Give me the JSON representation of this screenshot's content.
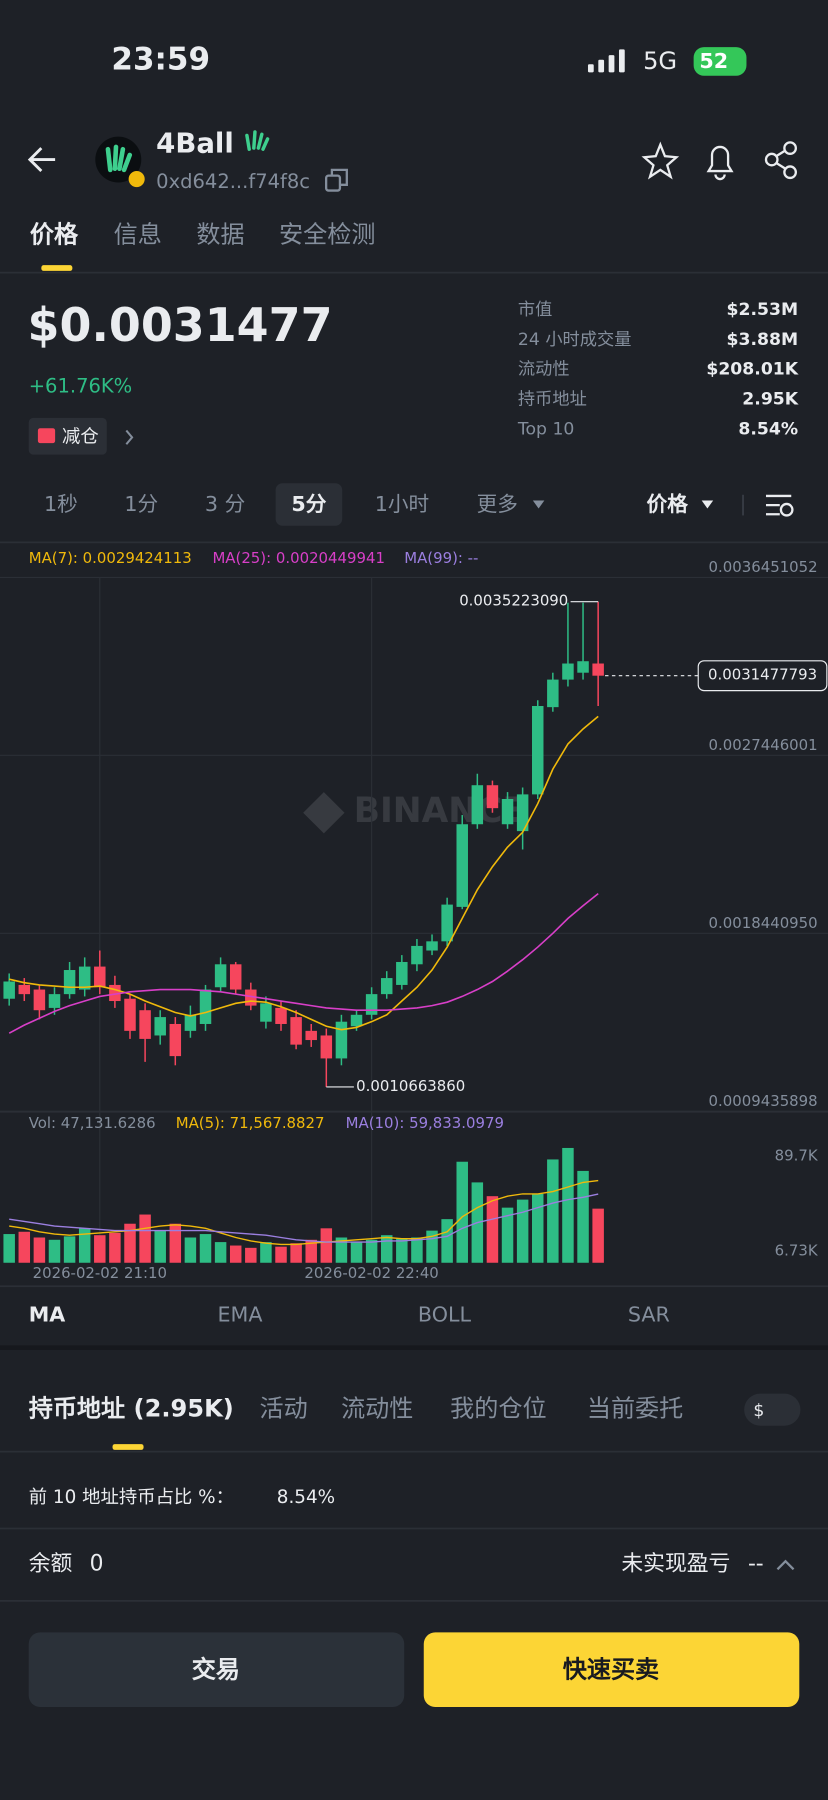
{
  "status_bar": {
    "time": "23:59",
    "network": "5G",
    "battery": "52"
  },
  "header": {
    "name": "4Ball",
    "address": "0xd642...f74f8c"
  },
  "tabs": {
    "items": [
      "价格",
      "信息",
      "数据",
      "安全检测"
    ]
  },
  "price": {
    "value": "$0.0031477",
    "change": "+61.76K%",
    "tag": "减仓"
  },
  "stats": {
    "rows": [
      [
        "市值",
        "$2.53M"
      ],
      [
        "24 小时成交量",
        "$3.88M"
      ],
      [
        "流动性",
        "$208.01K"
      ],
      [
        "持币地址",
        "2.95K"
      ],
      [
        "Top 10",
        "8.54%"
      ]
    ]
  },
  "intervals": {
    "items": [
      "1秒",
      "1分",
      "3 分",
      "5分",
      "1小时",
      "更多"
    ],
    "price_mode": "价格"
  },
  "chart_data": {
    "type": "candlestick",
    "categories": [
      null,
      null,
      null,
      null,
      null,
      null,
      "2026-02-02 21:10",
      null,
      null,
      null,
      null,
      null,
      null,
      null,
      null,
      null,
      null,
      null,
      null,
      null,
      null,
      null,
      null,
      null,
      "2026-02-02 22:40",
      null,
      null,
      null,
      null,
      null,
      null,
      null,
      null,
      null,
      null,
      null,
      null,
      null,
      null,
      null
    ],
    "open": [
      0.0015129,
      0.0015827,
      0.0015594,
      0.0014665,
      0.0015362,
      0.0015594,
      0.0016756,
      0.0015827,
      0.0015129,
      0.0014548,
      0.001327,
      0.0013851,
      0.0013503,
      0.0013851,
      0.001571,
      0.0016872,
      0.0015594,
      0.0013967,
      0.0014665,
      0.00142,
      0.0013503,
      0.001327,
      0.0012108,
      0.0013735,
      0.0014316,
      0.0015362,
      0.0015827,
      0.0016872,
      0.0017569,
      0.0018034,
      0.0019777,
      0.002396,
      0.0025935,
      0.002396,
      0.0023612,
      0.0025471,
      0.0029886,
      0.003128,
      0.0031629,
      0.0032094
    ],
    "high": [
      0.0016408,
      0.0016175,
      0.0015827,
      0.001571,
      0.0016989,
      0.0017221,
      0.0017569,
      0.0016291,
      0.0015362,
      0.0014897,
      0.0014548,
      0.00142,
      0.0014781,
      0.0015827,
      0.0017221,
      0.0016989,
      0.0015943,
      0.0015246,
      0.0015013,
      0.0014548,
      0.0013851,
      0.0013619,
      0.0014316,
      0.0014548,
      0.001571,
      0.0016524,
      0.0017337,
      0.0018151,
      0.0018383,
      0.0020242,
      0.0024425,
      0.0026516,
      0.0026168,
      0.0025587,
      0.0025819,
      0.0030235,
      0.0031629,
      0.0035173,
      0.0035173,
      0.003522309
    ],
    "low": [
      0.0014781,
      0.0015013,
      0.0014084,
      0.0014316,
      0.0015129,
      0.0015246,
      0.0015362,
      0.0014665,
      0.0013096,
      0.0011934,
      0.0012806,
      0.001176,
      0.0013154,
      0.0013503,
      0.0015478,
      0.0015362,
      0.0014548,
      0.0013619,
      0.0013503,
      0.0012573,
      0.0012689,
      0.001066386,
      0.001176,
      0.0013503,
      0.0014084,
      0.0015129,
      0.0015594,
      0.0016524,
      0.0017337,
      0.0017802,
      0.0019661,
      0.0023728,
      0.0024541,
      0.0023728,
      0.0022682,
      0.0025238,
      0.0029654,
      0.0030932,
      0.003128,
      0.0029944
    ],
    "close": [
      0.0016001,
      0.0015362,
      0.0014548,
      0.0015362,
      0.0016582,
      0.0016756,
      0.001571,
      0.0015013,
      0.0013503,
      0.0013096,
      0.00142,
      0.0012225,
      0.0014316,
      0.0015594,
      0.0016872,
      0.0015594,
      0.0014781,
      0.0014897,
      0.0013851,
      0.0012806,
      0.0013038,
      0.0012108,
      0.0013967,
      0.0014316,
      0.0015362,
      0.0016175,
      0.0016989,
      0.0017802,
      0.0018034,
      0.0019893,
      0.002396,
      0.0025935,
      0.0024774,
      0.0025238,
      0.0025471,
      0.0029944,
      0.003128,
      0.0032094,
      0.003221,
      0.0031477793
    ],
    "up_color": "#2ebd85",
    "down_color": "#f6465d",
    "ylim": [
      0.0009435898,
      0.0036451052
    ],
    "yticks": [
      0.0036451052,
      0.0027446001,
      {
        "value": 0.001844095,
        "label": "0.0018440950"
      },
      0.0009435898
    ],
    "grid": true,
    "series": [
      {
        "color": "#f0b90b",
        "values": [
          0.0016117,
          0.0015943,
          0.0015827,
          0.0015769,
          0.001571,
          0.001571,
          0.0015769,
          0.0015594,
          0.0015362,
          0.0015013,
          0.0014723,
          0.0014432,
          0.0014258,
          0.0014432,
          0.0014665,
          0.0014897,
          0.0015013,
          0.0014955,
          0.0014723,
          0.0014432,
          0.0014084,
          0.0013735,
          0.0013561,
          0.0013677,
          0.0013967,
          0.0014316,
          0.0015013,
          0.001571,
          0.0016582,
          0.0017744,
          0.0019196,
          0.0020649,
          0.0021811,
          0.0022798,
          0.0023553,
          0.0025006,
          0.0026749,
          0.0028027,
          0.0028782,
          0.0029424113
        ]
      },
      {
        "color": "#d83fc8",
        "values": [
          0.0013386,
          0.0013793,
          0.0014142,
          0.0014491,
          0.0014781,
          0.0015013,
          0.0015246,
          0.0015362,
          0.0015478,
          0.0015536,
          0.0015594,
          0.0015594,
          0.0015594,
          0.0015536,
          0.0015478,
          0.0015362,
          0.0015246,
          0.0015129,
          0.0015013,
          0.0014897,
          0.0014781,
          0.0014665,
          0.0014607,
          0.0014548,
          0.0014548,
          0.0014548,
          0.0014607,
          0.0014665,
          0.0014781,
          0.0014955,
          0.0015246,
          0.0015594,
          0.0016001,
          0.0016524,
          0.0017105,
          0.0017744,
          0.0018441,
          0.0019196,
          0.0019835,
          0.0020449941
        ]
      }
    ],
    "legend": [
      {
        "text": "MA(7): 0.0029424113",
        "color": "#f0b90b"
      },
      {
        "text": "MA(25): 0.0020449941",
        "color": "#d83fc8"
      },
      {
        "text": "MA(99): --",
        "color": "#9b7fe0"
      }
    ],
    "high_label": {
      "value": 0.003522309,
      "label": "0.0035223090"
    },
    "low_label": {
      "value": 0.001066386,
      "label": "0.0010663860"
    },
    "last_price": 0.0031477793,
    "watermark": "BINANCE",
    "volume": {
      "values": [
        25000,
        27000,
        22000,
        20000,
        23000,
        30000,
        24000,
        26000,
        34000,
        42000,
        28000,
        34000,
        22000,
        25000,
        18000,
        15000,
        13000,
        18000,
        14000,
        17000,
        20000,
        30000,
        22000,
        18000,
        20000,
        24000,
        21000,
        22000,
        28000,
        38000,
        88000,
        70000,
        58000,
        48000,
        55000,
        60000,
        90000,
        100000,
        80000,
        47131.6286
      ],
      "ylim": [
        0,
        110000
      ],
      "yticks": [
        {
          "value": 89700,
          "label": "89.7K"
        },
        {
          "value": 6730,
          "label": "6.73K"
        }
      ],
      "series": [
        {
          "color": "#f0b90b",
          "values": [
            32000,
            30000,
            27000,
            25000,
            24000,
            25000,
            26000,
            27000,
            28000,
            30000,
            32000,
            33000,
            32000,
            30000,
            26000,
            22000,
            19000,
            17000,
            16000,
            16000,
            17000,
            18000,
            19000,
            20000,
            21000,
            22000,
            21000,
            21000,
            23000,
            27000,
            40000,
            48000,
            54000,
            58000,
            60000,
            60000,
            62000,
            66000,
            70000,
            71567.8827
          ]
        },
        {
          "color": "#9b7fe0",
          "values": [
            38000,
            36000,
            34000,
            32000,
            31000,
            30000,
            29000,
            28000,
            28000,
            28000,
            28000,
            28000,
            28000,
            28000,
            27000,
            26000,
            25000,
            24000,
            22000,
            20000,
            19000,
            18000,
            18000,
            18000,
            18000,
            19000,
            19000,
            20000,
            21000,
            23000,
            30000,
            35000,
            38000,
            41000,
            44000,
            48000,
            52000,
            55000,
            57000,
            59833.0979
          ]
        }
      ],
      "legend": [
        {
          "text": "Vol: 47,131.6286",
          "color": "#848e9c"
        },
        {
          "text": "MA(5): 71,567.8827",
          "color": "#f0b90b"
        },
        {
          "text": "MA(10): 59,833.0979",
          "color": "#9b7fe0"
        }
      ]
    }
  },
  "indicators": {
    "items": [
      "MA",
      "EMA",
      "BOLL",
      "SAR"
    ]
  },
  "bottom_tabs": {
    "items": [
      "持币地址 (2.95K)",
      "活动",
      "流动性",
      "我的仓位",
      "当前委托"
    ],
    "currency": "$"
  },
  "holders": {
    "label": "前 10 地址持币占比 %：",
    "value": "8.54%"
  },
  "balance": {
    "label": "余额",
    "value": 0,
    "pnl_label": "未实现盈亏",
    "pnl_value": "--"
  },
  "buttons": {
    "trade": "交易",
    "quick": "快速买卖"
  }
}
